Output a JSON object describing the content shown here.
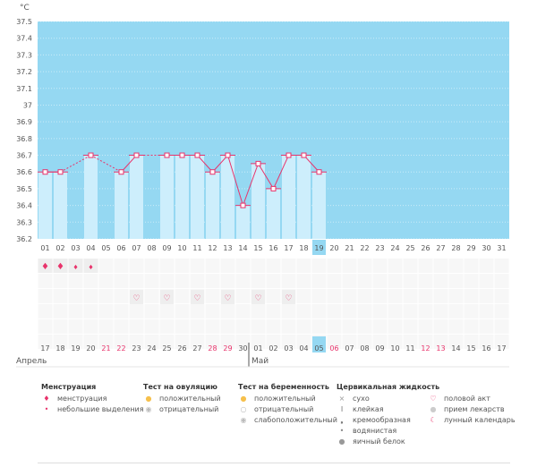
{
  "chart_data": {
    "type": "bar+line",
    "ylabel": "°C",
    "ylim": [
      36.2,
      37.5
    ],
    "yticks": [
      "36.2",
      "36.3",
      "36.4",
      "36.5",
      "36.6",
      "36.7",
      "36.8",
      "36.9",
      "37",
      "37.1",
      "37.2",
      "37.3",
      "37.4",
      "37.5"
    ],
    "days": [
      "01",
      "02",
      "03",
      "04",
      "05",
      "06",
      "07",
      "08",
      "09",
      "10",
      "11",
      "12",
      "13",
      "14",
      "15",
      "16",
      "17",
      "18",
      "19",
      "20",
      "21",
      "22",
      "23",
      "24",
      "25",
      "26",
      "27",
      "28",
      "29",
      "30",
      "31"
    ],
    "values": [
      36.6,
      36.6,
      null,
      36.7,
      null,
      36.6,
      36.7,
      null,
      36.7,
      36.7,
      36.7,
      36.6,
      36.7,
      36.4,
      36.65,
      36.5,
      36.7,
      36.7,
      36.6,
      null,
      null,
      null,
      null,
      null,
      null,
      null,
      null,
      null,
      null,
      null,
      null
    ],
    "current_day": "19",
    "dates": [
      "17",
      "18",
      "19",
      "20",
      "21",
      "22",
      "23",
      "24",
      "25",
      "26",
      "27",
      "28",
      "29",
      "30",
      "01",
      "02",
      "03",
      "04",
      "05",
      "06",
      "07",
      "08",
      "09",
      "10",
      "11",
      "12",
      "13",
      "14",
      "15",
      "16",
      "17"
    ],
    "weekend_dates_idx": [
      4,
      5,
      11,
      12,
      19,
      25,
      26
    ],
    "today_date_idx": 18,
    "months": [
      "Апрель",
      "Май"
    ],
    "menstruation": [
      "heavy",
      "heavy",
      "light",
      "light"
    ],
    "intercourse_days": [
      "07",
      "09",
      "11",
      "13",
      "15",
      "17"
    ],
    "colors": {
      "background": "#95d8f2",
      "bar": "#cdeefc",
      "line": "#e8336b",
      "weekend": "#e8336b",
      "today": "#95d8f2"
    }
  },
  "legend": [
    {
      "title": "Менструация",
      "items": [
        {
          "icon": "menstruation-icon",
          "label": "менструация"
        },
        {
          "icon": "spotting-icon",
          "label": "небольшие выделения"
        }
      ]
    },
    {
      "title": "Тест на овуляцию",
      "items": [
        {
          "icon": "ovulation-positive-icon",
          "label": "положительный"
        },
        {
          "icon": "ovulation-negative-icon",
          "label": "отрицательный"
        }
      ]
    },
    {
      "title": "Тест на беременность",
      "items": [
        {
          "icon": "pregnancy-positive-icon",
          "label": "положительный"
        },
        {
          "icon": "pregnancy-negative-icon",
          "label": "отрицательный"
        },
        {
          "icon": "pregnancy-weak-icon",
          "label": "слабоположительный"
        }
      ]
    },
    {
      "title": "Цервикальная жидкость",
      "items": [
        {
          "icon": "dry-icon",
          "label": "сухо"
        },
        {
          "icon": "sticky-icon",
          "label": "клейкая"
        },
        {
          "icon": "creamy-icon",
          "label": "кремообразная"
        },
        {
          "icon": "watery-icon",
          "label": "водянистая"
        },
        {
          "icon": "egg-white-icon",
          "label": "яичный белок"
        }
      ]
    },
    {
      "title": "",
      "items": [
        {
          "icon": "heart-icon",
          "label": "половой акт"
        },
        {
          "icon": "pill-icon",
          "label": "прием лекарств"
        },
        {
          "icon": "moon-icon",
          "label": "лунный календарь"
        }
      ]
    }
  ]
}
